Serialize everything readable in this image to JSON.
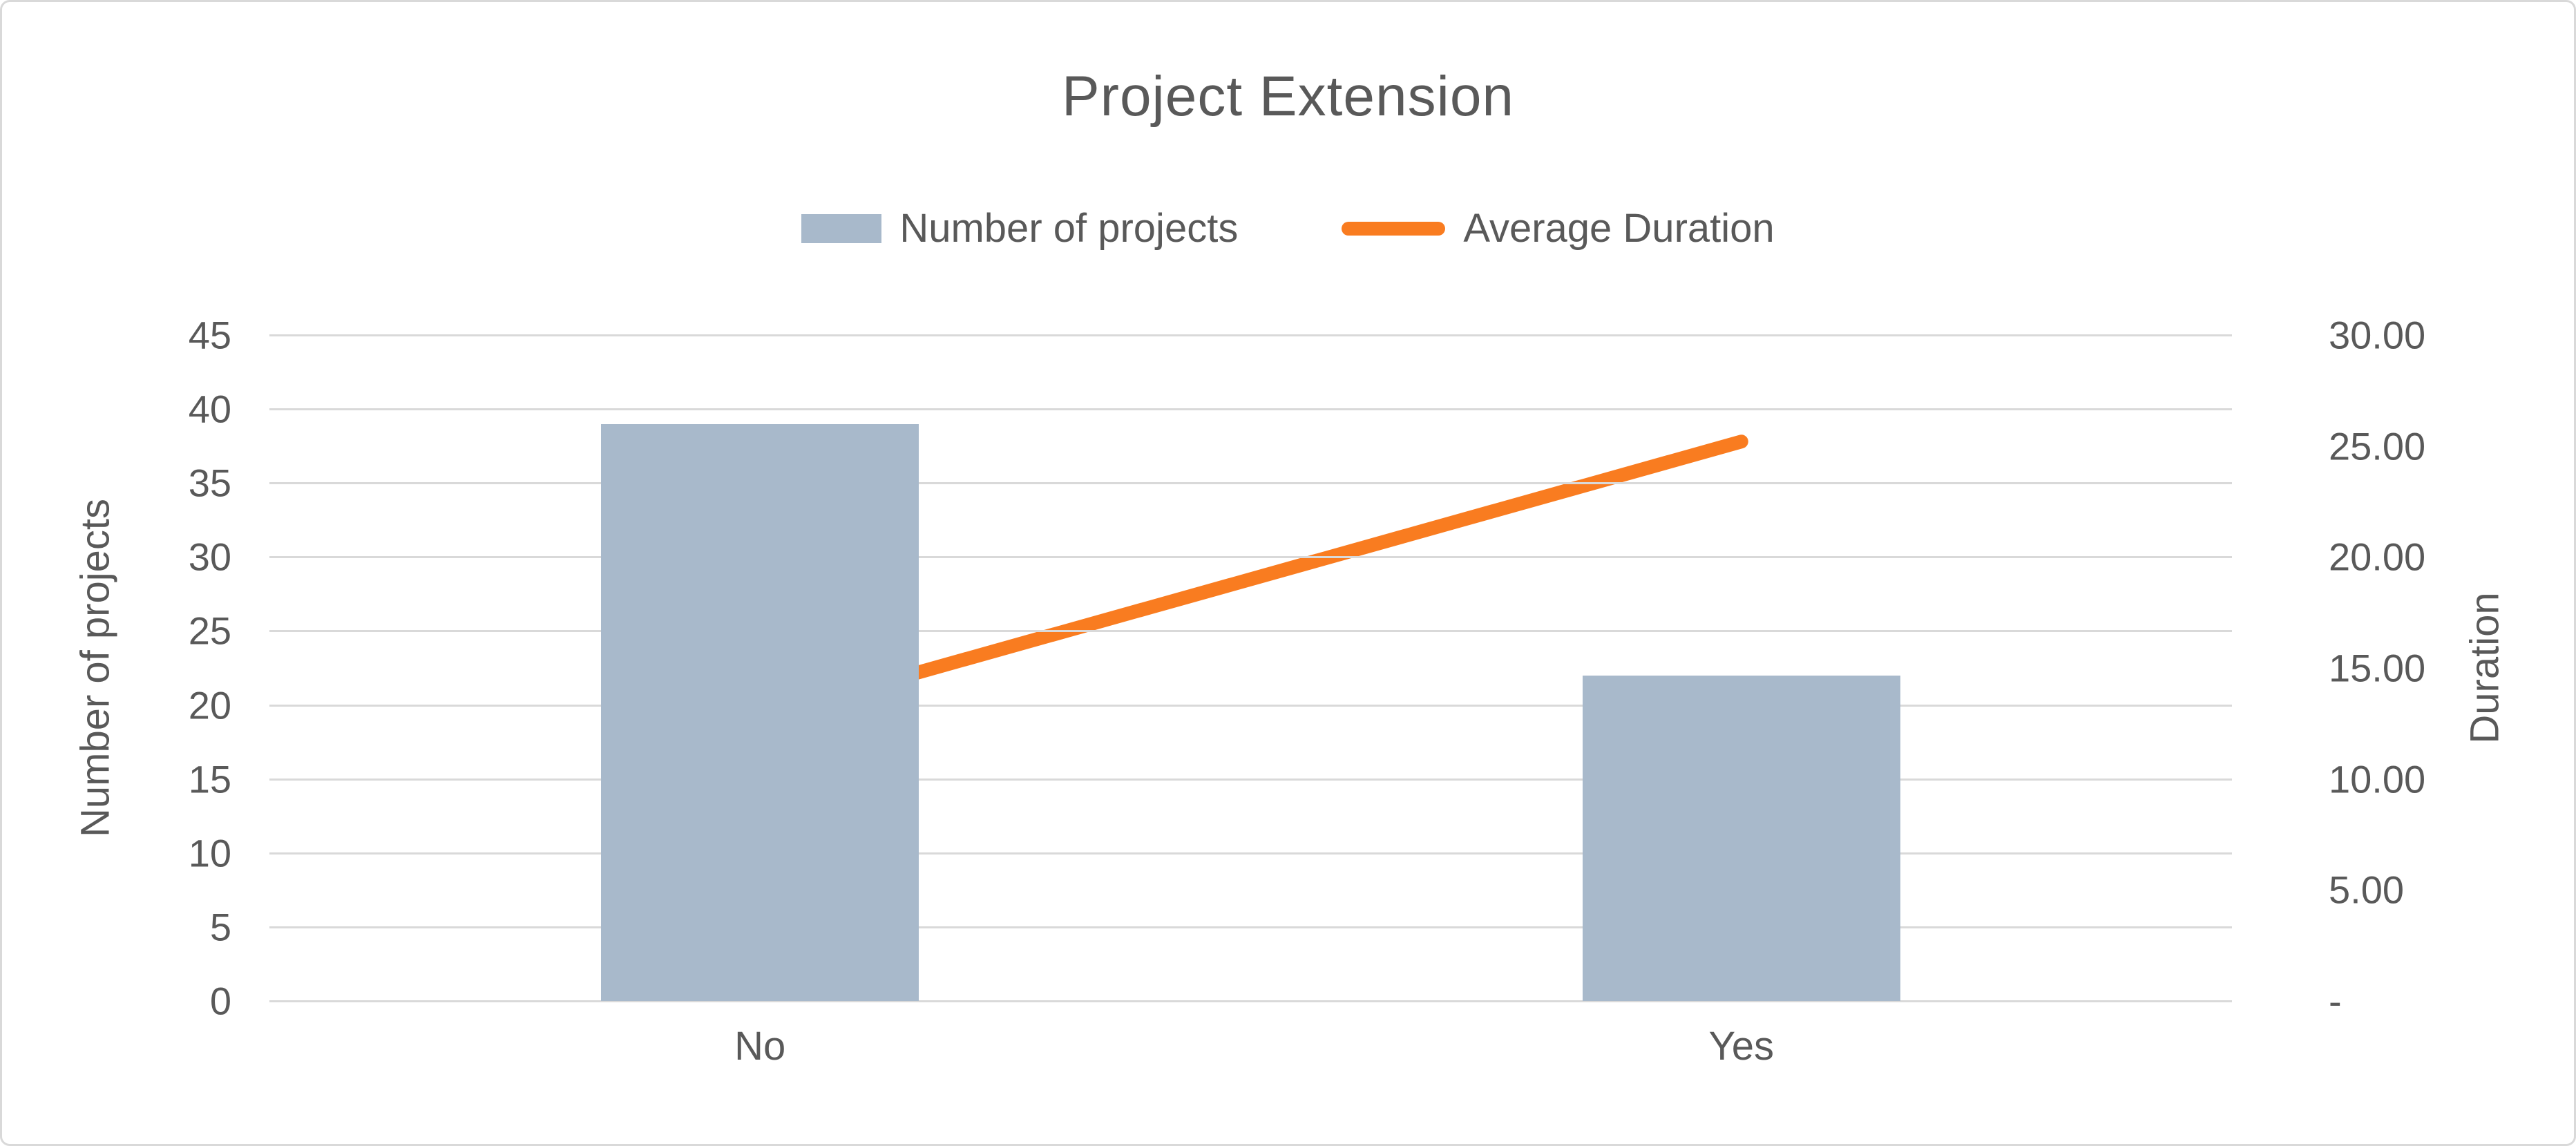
{
  "title": "Project Extension",
  "legend": {
    "items": [
      {
        "label": "Number of projects",
        "marker": "bar"
      },
      {
        "label": "Average Duration",
        "marker": "line"
      }
    ]
  },
  "colors": {
    "bar_fill": "#a8b9cb",
    "line_stroke": "#f97c20",
    "grid": "#d9d9d9",
    "text": "#595959"
  },
  "chart_data": {
    "type": "combo",
    "categories": [
      "No",
      "Yes"
    ],
    "series": [
      {
        "name": "Number of projects",
        "type": "bar",
        "axis": "left",
        "values": [
          39,
          22
        ]
      },
      {
        "name": "Average Duration",
        "type": "line",
        "axis": "right",
        "values": [
          12.8,
          25.2
        ]
      }
    ],
    "title": "Project Extension",
    "left_axis": {
      "label": "Number of projects",
      "range": [
        0,
        45
      ],
      "tick_values": [
        0,
        5,
        10,
        15,
        20,
        25,
        30,
        35,
        40,
        45
      ],
      "tick_labels": [
        "0",
        "5",
        "10",
        "15",
        "20",
        "25",
        "30",
        "35",
        "40",
        "45"
      ]
    },
    "right_axis": {
      "label": "Duration",
      "range": [
        0,
        30
      ],
      "tick_values": [
        0,
        5,
        10,
        15,
        20,
        25,
        30
      ],
      "tick_labels": [
        "-",
        "5.00",
        "10.00",
        "15.00",
        "20.00",
        "25.00",
        "30.00"
      ]
    },
    "grid": true,
    "legend_position": "top"
  }
}
